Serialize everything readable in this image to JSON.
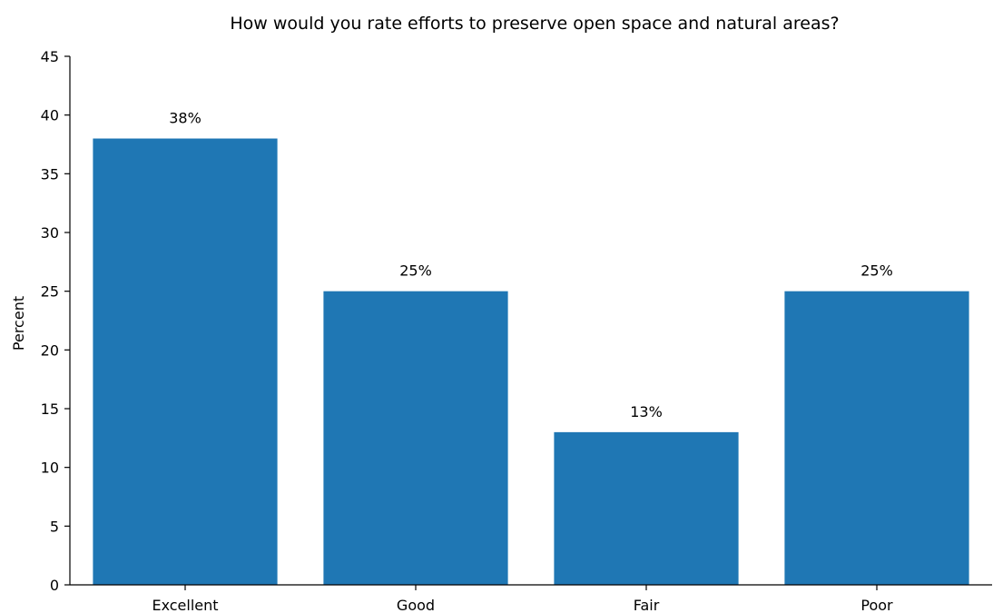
{
  "chart_data": {
    "type": "bar",
    "title": "How would you rate efforts to preserve open space and natural areas?",
    "xlabel": "",
    "ylabel": "Percent",
    "categories": [
      "Excellent",
      "Good",
      "Fair",
      "Poor"
    ],
    "values": [
      38,
      25,
      13,
      25
    ],
    "data_labels": [
      "38%",
      "25%",
      "13%",
      "25%"
    ],
    "ylim": [
      0,
      45
    ],
    "yticks": [
      0,
      5,
      10,
      15,
      20,
      25,
      30,
      35,
      40,
      45
    ],
    "bar_color": "#1f77b4",
    "grid": false,
    "legend": "none"
  }
}
